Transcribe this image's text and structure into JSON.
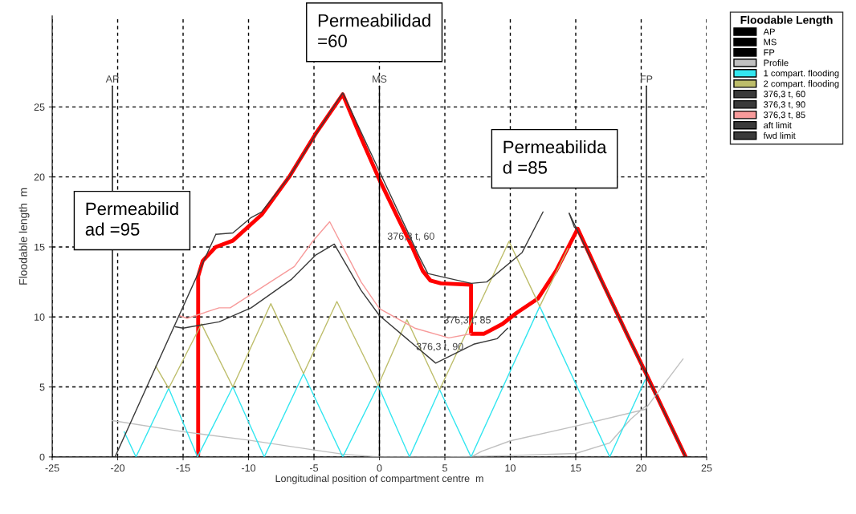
{
  "chart_data": {
    "type": "line",
    "xlabel": "Longitudinal position of compartment centre  m",
    "ylabel": "Floodable length  m",
    "legend_title": "Floodable Length",
    "xlim": [
      -25,
      25
    ],
    "xticks": [
      -25,
      -20,
      -15,
      -10,
      -5,
      0,
      5,
      10,
      15,
      20,
      25
    ],
    "ylim": [
      0,
      31.5
    ],
    "yticks": [
      0,
      5,
      10,
      15,
      20,
      25
    ],
    "grid": true,
    "legend": "top right",
    "marker": "none",
    "line_style": "solid",
    "series": [
      {
        "name": "AP",
        "color": "#000000",
        "x": [
          -20.4,
          -20.4
        ],
        "values": [
          0,
          26.5
        ]
      },
      {
        "name": "MS",
        "color": "#000000",
        "x": [
          0,
          0
        ],
        "values": [
          0,
          26.5
        ]
      },
      {
        "name": "FP",
        "color": "#000000",
        "x": [
          20.4,
          20.4
        ],
        "values": [
          0,
          26.5
        ]
      },
      {
        "name": "Profile",
        "color": "#c0c0c0",
        "x": [
          -20.4,
          -15,
          -10,
          -5,
          -2.8,
          0,
          7,
          7.8,
          10,
          15,
          20.3,
          23.2,
          null,
          5,
          10,
          15,
          17.6,
          19.2,
          20.3
        ],
        "values": [
          2.6,
          1.8,
          1.2,
          0.5,
          0.2,
          0,
          0,
          0.4,
          1.15,
          2.2,
          3.4,
          7.0,
          null,
          0,
          0.1,
          0.25,
          1.0,
          2.7,
          3.6
        ]
      },
      {
        "name": "1 compart. flooding",
        "color": "#33e6f0",
        "x": [
          -19.5,
          -18.6,
          -16.1,
          -13.9,
          -11.2,
          -8.8,
          -5.8,
          -2.8,
          -0.1,
          2.3,
          4.6,
          7.0,
          12.25,
          17.6,
          20.3
        ],
        "values": [
          1.8,
          0,
          4.9,
          0,
          5.0,
          0,
          5.95,
          0,
          5.1,
          0,
          4.8,
          0,
          10.75,
          0,
          5.5
        ]
      },
      {
        "name": "2 compart. flooding",
        "color": "#bdbd6a",
        "x": [
          -17.1,
          -16.1,
          -13.6,
          -11.2,
          -8.3,
          -5.8,
          -3.25,
          -0.1,
          2.1,
          4.6,
          9.9,
          12.25,
          14.4
        ],
        "values": [
          6.5,
          4.9,
          9.5,
          5.0,
          10.95,
          5.95,
          11.1,
          5.1,
          9.8,
          4.8,
          15.4,
          10.75,
          14.9
        ]
      },
      {
        "name": "376,3 t, 60",
        "color": "#3a3a3a",
        "x": [
          -12.5,
          -11.2,
          -9.8,
          -9.0,
          -6.9,
          -4.9,
          -2.8,
          0,
          3.1,
          3.7,
          5.1,
          7.0,
          8.2,
          10.9,
          12.5,
          13.0,
          14.5,
          14.9,
          15.1
        ],
        "values": [
          15.9,
          16.0,
          17.1,
          17.5,
          20.0,
          23.0,
          26.0,
          20.4,
          14.2,
          13.1,
          12.8,
          12.4,
          12.5,
          14.6,
          17.5,
          null,
          17.4,
          16.4,
          16.3
        ]
      },
      {
        "name": "376,3 t, 90",
        "color": "#3a3a3a",
        "x": [
          -15.6,
          -15.0,
          -12.25,
          -9.8,
          -6.7,
          -4.9,
          -3.45,
          -1.4,
          0,
          4.3,
          7.2,
          9.0,
          9.8
        ],
        "values": [
          9.3,
          9.2,
          9.65,
          10.65,
          12.7,
          14.4,
          15.2,
          11.9,
          10.1,
          6.7,
          8.05,
          8.45,
          9.2
        ]
      },
      {
        "name": "376,3 t, 85",
        "color": "#f79a9a",
        "x": [
          -15.3,
          -14.7,
          -12.25,
          -11.4,
          -6.5,
          -5.1,
          -3.8,
          -1.4,
          0,
          2.7,
          5.3,
          7.0
        ],
        "values": [
          10.1,
          9.9,
          10.65,
          10.65,
          13.6,
          15.4,
          16.8,
          12.5,
          10.6,
          9.2,
          8.5,
          8.8
        ]
      },
      {
        "name": "aft limit",
        "color": "#3a3a3a",
        "x": [
          -20.2,
          -12.5
        ],
        "values": [
          0,
          15.9
        ]
      },
      {
        "name": "fwd limit",
        "color": "#3a3a3a",
        "x": [
          23.4,
          14.5
        ],
        "values": [
          0,
          17.4
        ]
      },
      {
        "color": "#ff0000",
        "x": [
          -13.85,
          -13.85,
          -13.5,
          -12.5,
          -11.2,
          -9.0,
          -6.9,
          -4.9,
          -2.8,
          -1.5,
          0,
          1.5,
          2.5,
          3.3,
          3.9,
          4.7,
          7.0,
          7.0,
          8.0,
          9.4,
          10.5,
          12.1,
          13.5,
          15.15,
          17,
          19,
          20.3,
          23.4
        ],
        "values": [
          0,
          12.9,
          14.0,
          15.0,
          15.45,
          17.3,
          20.0,
          23.05,
          25.9,
          23.0,
          19.8,
          16.9,
          15.0,
          13.3,
          12.6,
          12.4,
          12.3,
          8.8,
          8.8,
          9.5,
          10.3,
          11.3,
          13.3,
          16.3,
          12.55,
          8.6,
          6.1,
          0
        ]
      }
    ],
    "annotations": [
      {
        "text": "AP",
        "x": -20.4,
        "y": 26.6
      },
      {
        "text": "MS",
        "x": 0,
        "y": 26.6
      },
      {
        "text": "FP",
        "x": 20.4,
        "y": 26.6
      },
      "376,3 t, 60",
      "376,3 t, 85",
      "376,3 t, 90",
      "Permeabilid\nad =95",
      "Permeabilidad\n=60",
      "Permeabilida\nd =85"
    ]
  }
}
